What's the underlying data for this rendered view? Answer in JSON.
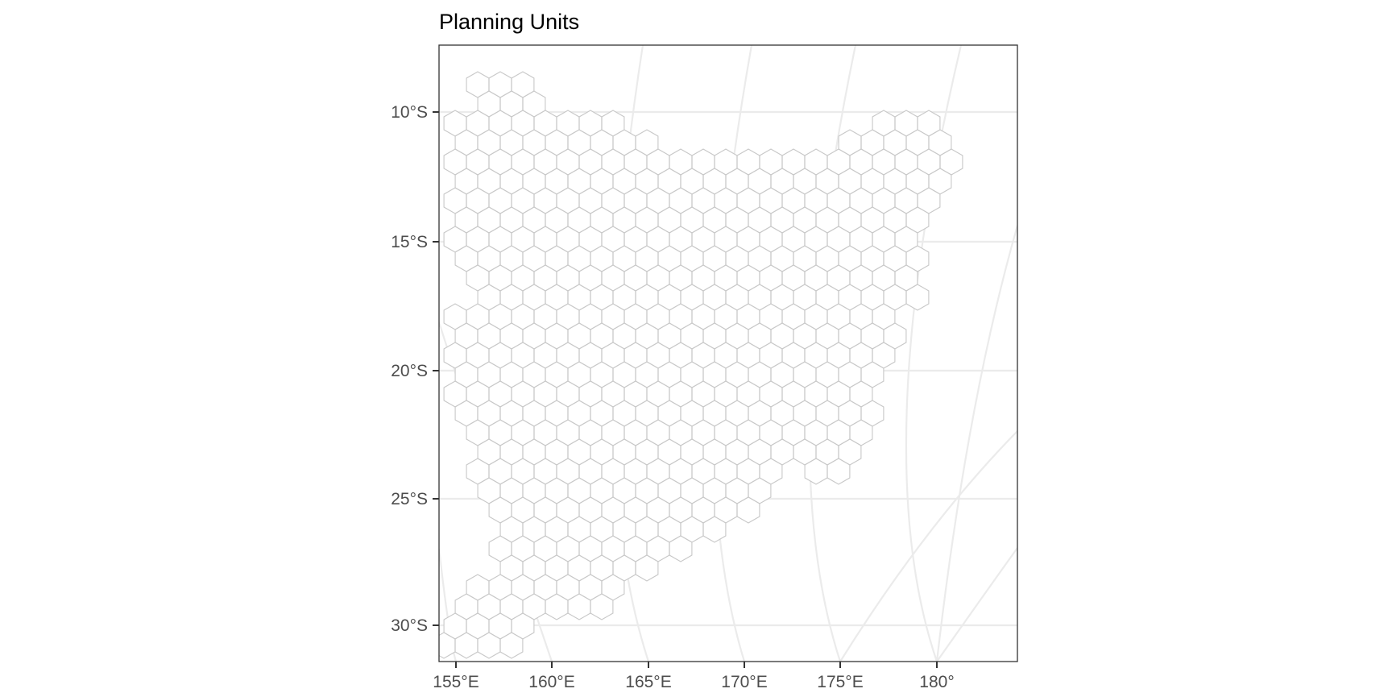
{
  "title": "Planning Units",
  "map": {
    "type": "planning-unit hex grid",
    "latitude_ticks": [
      "10°S",
      "15°S",
      "20°S",
      "25°S",
      "30°S"
    ],
    "longitude_ticks": [
      "155°E",
      "160°E",
      "165°E",
      "170°E",
      "175°E",
      "180°"
    ],
    "grid_lines": true,
    "panel_border": true,
    "colors": {
      "background": "#ffffff",
      "graticule": "#ebebeb",
      "cell_outline": "#c8c8c8",
      "cell_fill": "#ffffff",
      "axis_text": "#4d4d4d",
      "border": "#333333"
    }
  }
}
